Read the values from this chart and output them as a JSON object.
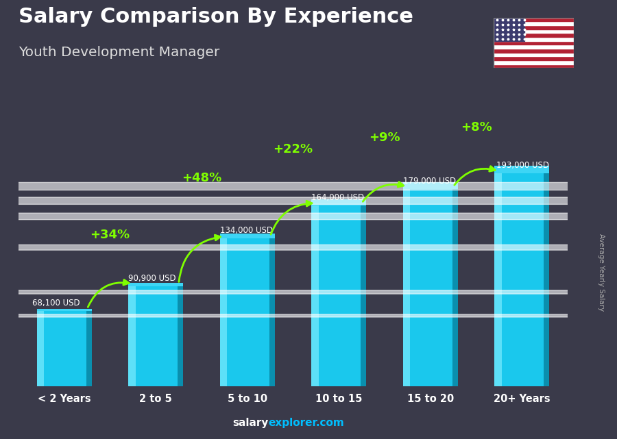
{
  "title_line1": "Salary Comparison By Experience",
  "title_line2": "Youth Development Manager",
  "categories": [
    "< 2 Years",
    "2 to 5",
    "5 to 10",
    "10 to 15",
    "15 to 20",
    "20+ Years"
  ],
  "values": [
    68100,
    90900,
    134000,
    164000,
    179000,
    193000
  ],
  "salary_labels": [
    "68,100 USD",
    "90,900 USD",
    "134,000 USD",
    "164,000 USD",
    "179,000 USD",
    "193,000 USD"
  ],
  "pct_labels": [
    "+34%",
    "+48%",
    "+22%",
    "+9%",
    "+8%"
  ],
  "bar_color_main": "#1AC8ED",
  "bar_color_left": "#5DE0F8",
  "bar_color_right": "#0A8FAE",
  "bar_color_top": "#3DD5F5",
  "bg_color": "#3a3a4a",
  "title1_color": "#FFFFFF",
  "title2_color": "#DDDDDD",
  "salary_label_color": "#FFFFFF",
  "pct_color": "#7FFF00",
  "arrow_color": "#7FFF00",
  "xlabel_color": "#FFFFFF",
  "footer_salary_color": "#FFFFFF",
  "footer_explorer_color": "#00BFFF",
  "side_label": "Average Yearly Salary",
  "side_label_color": "#AAAAAA",
  "ylim": [
    0,
    215000
  ],
  "bar_width": 0.6
}
